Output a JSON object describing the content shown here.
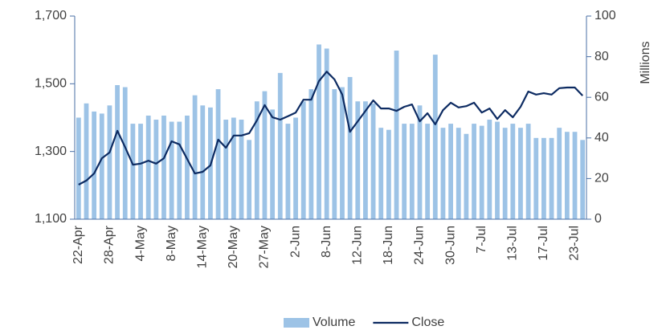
{
  "chart_data": {
    "type": "bar_line",
    "categories": [
      "22-Apr",
      null,
      null,
      null,
      "28-Apr",
      null,
      null,
      null,
      "4-May",
      null,
      null,
      null,
      "8-May",
      null,
      null,
      null,
      "14-May",
      null,
      null,
      null,
      "20-May",
      null,
      null,
      null,
      "27-May",
      null,
      null,
      null,
      "2-Jun",
      null,
      null,
      null,
      "8-Jun",
      null,
      null,
      null,
      "12-Jun",
      null,
      null,
      null,
      "18-Jun",
      null,
      null,
      null,
      "24-Jun",
      null,
      null,
      null,
      "30-Jun",
      null,
      null,
      null,
      "7-Jul",
      null,
      null,
      null,
      "13-Jul",
      null,
      null,
      null,
      "17-Jul",
      null,
      null,
      null,
      "23-Jul",
      null
    ],
    "series": [
      {
        "name": "Volume",
        "color": "#9dc3e6",
        "axis": "y2",
        "kind": "bar",
        "values": [
          50,
          57,
          53,
          52,
          56,
          66,
          65,
          47,
          47,
          51,
          49,
          51,
          48,
          48,
          51,
          61,
          56,
          55,
          64,
          49,
          50,
          49,
          39,
          58,
          63,
          54,
          72,
          47,
          50,
          58,
          64,
          86,
          84,
          64,
          65,
          70,
          58,
          58,
          57,
          45,
          44,
          83,
          47,
          47,
          56,
          47,
          81,
          45,
          47,
          45,
          42,
          47,
          46,
          49,
          48,
          45,
          47,
          45,
          47,
          40,
          40,
          40,
          45,
          43,
          43,
          39
        ]
      },
      {
        "name": "Close",
        "color": "#0d2b62",
        "kind": "line",
        "values": [
          1202,
          1214,
          1235,
          1280,
          1297,
          1361,
          1313,
          1261,
          1264,
          1273,
          1264,
          1280,
          1330,
          1321,
          1278,
          1235,
          1240,
          1259,
          1335,
          1311,
          1347,
          1347,
          1354,
          1392,
          1437,
          1401,
          1394,
          1404,
          1415,
          1453,
          1453,
          1508,
          1536,
          1513,
          1468,
          1358,
          1389,
          1420,
          1451,
          1427,
          1427,
          1420,
          1432,
          1439,
          1389,
          1413,
          1380,
          1422,
          1444,
          1430,
          1434,
          1444,
          1415,
          1427,
          1396,
          1422,
          1401,
          1432,
          1477,
          1468,
          1472,
          1468,
          1487,
          1489,
          1489,
          1465
        ]
      }
    ],
    "ylim": [
      1100,
      1700
    ],
    "yticks": [
      {
        "value": 1100,
        "label": "1,100"
      },
      {
        "value": 1300,
        "label": "1,300"
      },
      {
        "value": 1500,
        "label": "1,500"
      },
      {
        "value": 1700,
        "label": "1,700"
      }
    ],
    "y2lim": [
      0,
      100
    ],
    "y2ticks": [
      0,
      20,
      40,
      60,
      80,
      100
    ],
    "y2label": "Millions",
    "legend": "bottom",
    "grid": false
  }
}
